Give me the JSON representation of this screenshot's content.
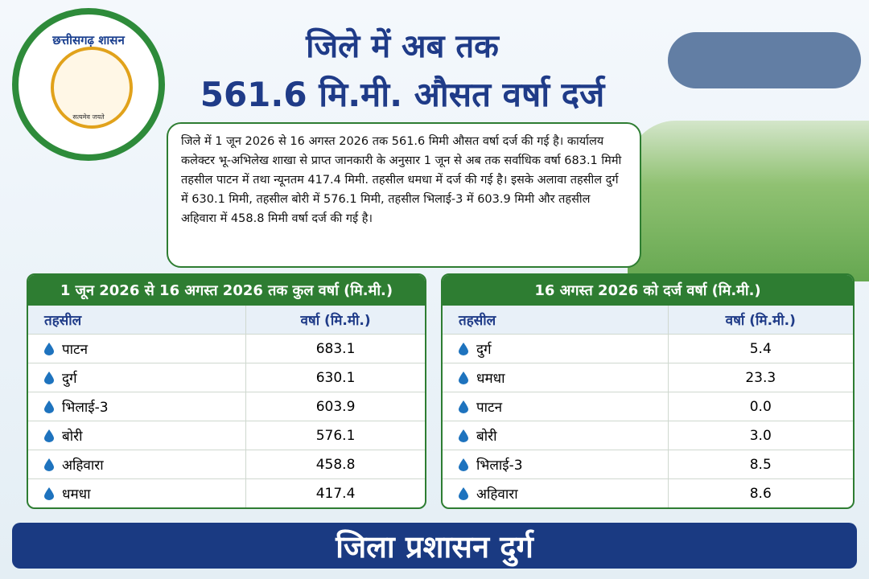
{
  "logo": {
    "top_text": "छत्तीसगढ़ शासन",
    "motto": "सत्यमेव जयते"
  },
  "header": {
    "title_line1": "जिले में अब तक",
    "title_line2": "561.6 मि.मी. औसत वर्षा दर्ज"
  },
  "summary": "जिले में 1 जून 2026 से 16 अगस्त 2026 तक 561.6 मिमी औसत वर्षा दर्ज की गई है। कार्यालय कलेक्टर भू-अभिलेख शाखा से प्राप्त जानकारी के अनुसार 1 जून से अब तक सर्वाधिक वर्षा 683.1 मिमी तहसील पाटन में तथा न्यूनतम 417.4 मिमी. तहसील धमधा में दर्ज की गई है। इसके अलावा तहसील दुर्ग में 630.1 मिमी, तहसील बोरी में 576.1 मिमी, तहसील भिलाई-3 में 603.9 मिमी और तहसील अहिवारा में 458.8 मिमी वर्षा दर्ज की गई है।",
  "tables": [
    {
      "title": "1 जून 2026 से 16 अगस्त 2026 तक कुल वर्षा (मि.मी.)",
      "columns": [
        "तहसील",
        "वर्षा (मि.मी.)"
      ],
      "rows": [
        [
          "पाटन",
          "683.1"
        ],
        [
          "दुर्ग",
          "630.1"
        ],
        [
          "भिलाई-3",
          "603.9"
        ],
        [
          "बोरी",
          "576.1"
        ],
        [
          "अहिवारा",
          "458.8"
        ],
        [
          "धमधा",
          "417.4"
        ]
      ]
    },
    {
      "title": "16 अगस्त 2026 को दर्ज वर्षा (मि.मी.)",
      "columns": [
        "तहसील",
        "वर्षा (मि.मी.)"
      ],
      "rows": [
        [
          "दुर्ग",
          "5.4"
        ],
        [
          "धमधा",
          "23.3"
        ],
        [
          "पाटन",
          "0.0"
        ],
        [
          "बोरी",
          "3.0"
        ],
        [
          "भिलाई-3",
          "8.5"
        ],
        [
          "अहिवारा",
          "8.6"
        ]
      ]
    }
  ],
  "footer": "जिला प्रशासन दुर्ग"
}
